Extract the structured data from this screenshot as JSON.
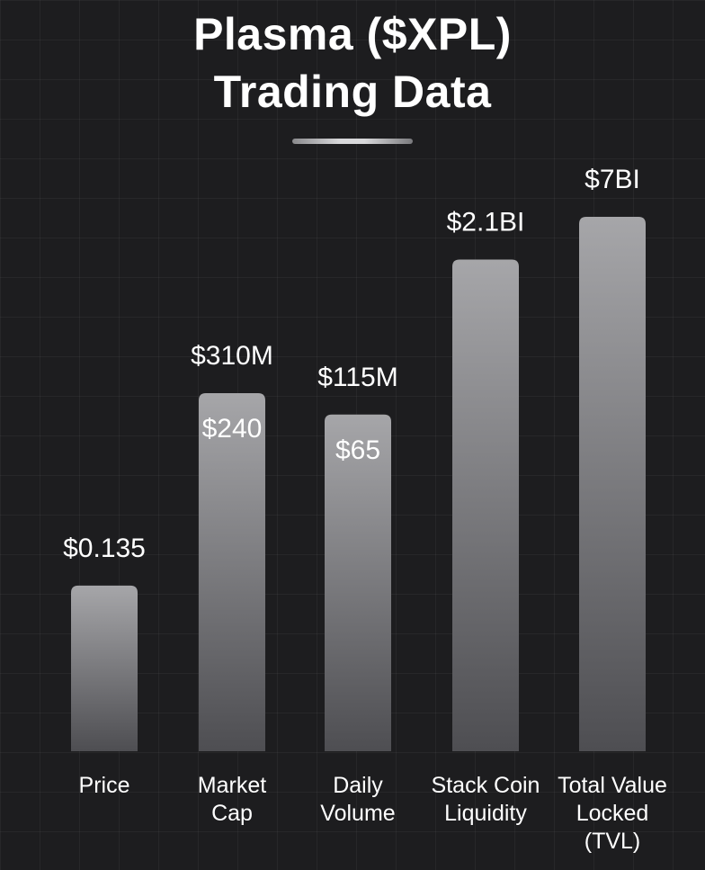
{
  "header": {
    "title_line1": "Plasma ($XPL)",
    "title_line2": "Trading Data"
  },
  "colors": {
    "background": "#1d1d1f",
    "bar_top": "#a6a6a9",
    "bar_bottom": "#4e4e52",
    "text": "#ffffff"
  },
  "chart_data": {
    "type": "bar",
    "title": "Plasma ($XPL) Trading Data",
    "xlabel": "",
    "ylabel": "",
    "grid": true,
    "categories": [
      [
        "Price"
      ],
      [
        "Market",
        "Cap"
      ],
      [
        "Daily",
        "Volume"
      ],
      [
        "Stack Coin",
        "Liquidity"
      ],
      [
        "Total Value",
        "Locked",
        "(TVL)"
      ]
    ],
    "bar_levels": [
      0.31,
      0.67,
      0.63,
      0.92,
      1.0
    ],
    "value_labels": [
      "$0.135",
      "$310M",
      "$115M",
      "$2.1BI",
      "$7BI"
    ],
    "inner_labels": [
      "",
      "$240",
      "$65",
      "",
      ""
    ]
  }
}
